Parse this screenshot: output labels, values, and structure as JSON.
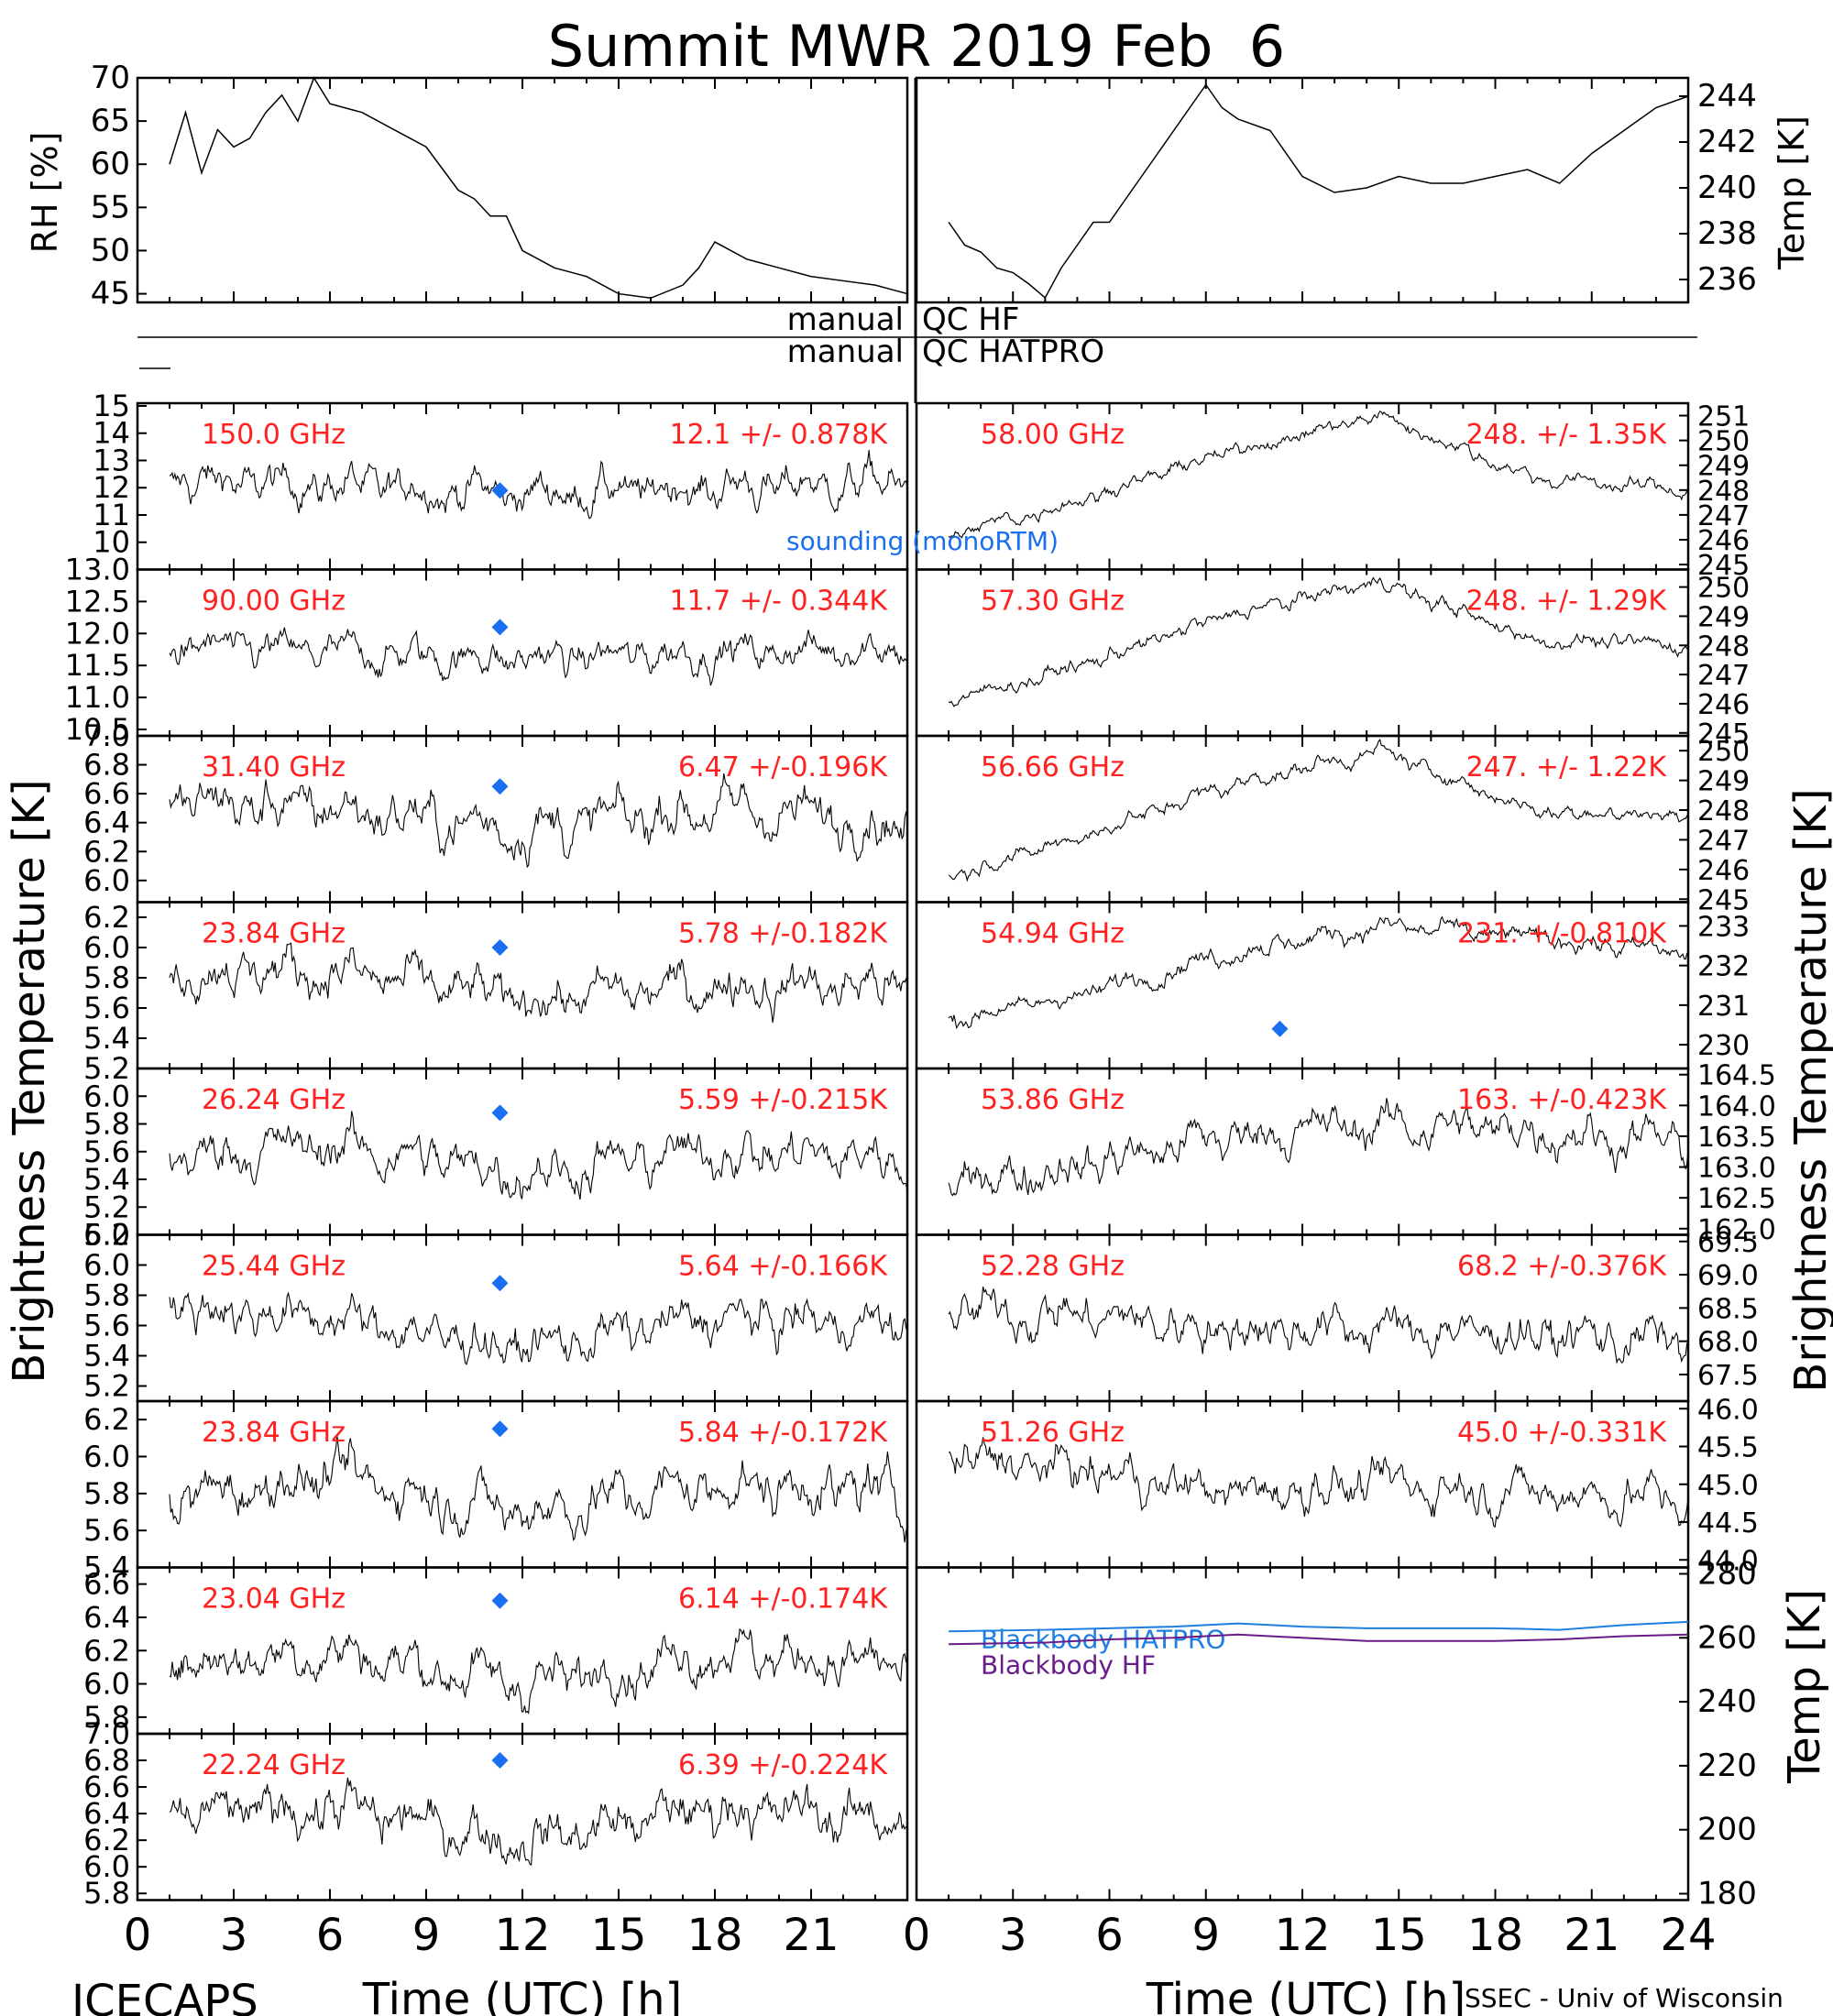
{
  "title": "Summit MWR 2019 Feb  6",
  "footer": {
    "left": "ICECAPS",
    "right": "SSEC - Univ of Wisconsin"
  },
  "colors": {
    "trace": "#000000",
    "annotation": "#ff2020",
    "sounding": "#1a6ef0",
    "blackbody_hatpro": "#1f7fe0",
    "blackbody_hf": "#6a1b8a"
  },
  "qc": {
    "hf_left": "manual",
    "hf_right": "QC HF",
    "hatpro_left": "manual",
    "hatpro_right": "QC HATPRO"
  },
  "labels": {
    "brightness_left": "Brightness Temperature [K]",
    "brightness_right": "Brightness Temperature [K]",
    "sounding": "sounding (monoRTM)"
  },
  "chart_data": {
    "type": "line",
    "x_unit": "Time (UTC) [h]",
    "xlim": [
      0,
      24
    ],
    "x_ticks": [
      0,
      3,
      6,
      9,
      12,
      15,
      18,
      21,
      24
    ],
    "x_tick_labels_left": [
      "0",
      "3",
      "6",
      "9",
      "12",
      "15",
      "18",
      "21"
    ],
    "x_tick_labels_right": [
      "0",
      "3",
      "6",
      "9",
      "12",
      "15",
      "18",
      "21",
      "24"
    ],
    "xlabel_left": "Time (UTC) [h]",
    "xlabel_right": "Time (UTC) [h]",
    "met": {
      "rh": {
        "ylabel": "RH [%]",
        "ylim": [
          44,
          70
        ],
        "ticks": [
          "45",
          "50",
          "55",
          "60",
          "65",
          "70"
        ],
        "t": [
          1,
          1.5,
          2,
          2.5,
          3,
          3.5,
          4,
          4.5,
          5,
          5.5,
          6,
          7,
          8,
          9,
          10,
          10.5,
          11,
          11.5,
          12,
          13,
          14,
          15,
          16,
          17,
          17.5,
          18,
          19,
          20,
          21,
          22,
          23,
          24
        ],
        "v": [
          60,
          66,
          59,
          64,
          62,
          63,
          66,
          68,
          65,
          70,
          67,
          66,
          64,
          62,
          57,
          56,
          54,
          54,
          50,
          48,
          47,
          45,
          44.5,
          46,
          48,
          51,
          49,
          48,
          47,
          46.5,
          46,
          45
        ]
      },
      "temp": {
        "ylabel": "Temp [K]",
        "ylim": [
          235,
          244.8
        ],
        "ticks": [
          "236",
          "238",
          "240",
          "242",
          "244"
        ],
        "t": [
          1,
          1.5,
          2,
          2.5,
          3,
          3.5,
          4,
          4.5,
          5,
          5.5,
          6,
          7,
          8,
          8.5,
          9,
          9.5,
          10,
          11,
          12,
          13,
          14,
          15,
          16,
          17,
          18,
          19,
          20,
          21,
          22,
          23,
          24
        ],
        "v": [
          238.5,
          237.5,
          237.2,
          236.5,
          236.3,
          235.8,
          235.2,
          236.5,
          237.5,
          238.5,
          238.5,
          240.5,
          242.5,
          243.5,
          244.5,
          243.5,
          243,
          242.5,
          240.5,
          239.8,
          240,
          240.5,
          240.2,
          240.2,
          240.5,
          240.8,
          240.2,
          241.5,
          242.5,
          243.5,
          244
        ]
      }
    },
    "left_panels": [
      {
        "label": "150.0 GHz",
        "stat": "12.1 +/- 0.878K",
        "ylim": [
          9,
          15.1
        ],
        "ticks": [
          "10",
          "11",
          "12",
          "13",
          "14",
          "15"
        ],
        "base": [
          12.3,
          12.1,
          11.8,
          12.0,
          12.2
        ],
        "noise": 0.85,
        "sounding": 11.9
      },
      {
        "label": "90.00 GHz",
        "stat": "11.7 +/- 0.344K",
        "ylim": [
          10.4,
          13.0
        ],
        "ticks": [
          "10.5",
          "11.0",
          "11.5",
          "12.0",
          "12.5",
          "13.0"
        ],
        "base": [
          11.8,
          11.7,
          11.6,
          11.7,
          11.8
        ],
        "noise": 0.32,
        "sounding": 12.1
      },
      {
        "label": "31.40 GHz",
        "stat": "6.47 +/-0.196K",
        "ylim": [
          5.85,
          7.0
        ],
        "ticks": [
          "6.0",
          "6.2",
          "6.4",
          "6.6",
          "6.8",
          "7.0"
        ],
        "base": [
          6.55,
          6.5,
          6.35,
          6.5,
          6.4
        ],
        "noise": 0.2,
        "sounding": 6.65
      },
      {
        "label": "23.84 GHz",
        "stat": "5.78 +/-0.182K",
        "ylim": [
          5.2,
          6.3
        ],
        "ticks": [
          "5.2",
          "5.4",
          "5.6",
          "5.8",
          "6.0",
          "6.2"
        ],
        "base": [
          5.85,
          5.85,
          5.65,
          5.75,
          5.75
        ],
        "noise": 0.18,
        "sounding": 6.0
      },
      {
        "label": "26.24 GHz",
        "stat": "5.59 +/-0.215K",
        "ylim": [
          5.0,
          6.2
        ],
        "ticks": [
          "5.0",
          "5.2",
          "5.4",
          "5.6",
          "5.8",
          "6.0"
        ],
        "base": [
          5.55,
          5.65,
          5.45,
          5.6,
          5.55
        ],
        "noise": 0.2,
        "sounding": 5.88
      },
      {
        "label": "25.44 GHz",
        "stat": "5.64 +/-0.166K",
        "ylim": [
          5.1,
          6.2
        ],
        "ticks": [
          "5.2",
          "5.4",
          "5.6",
          "5.8",
          "6.0",
          "6.2"
        ],
        "base": [
          5.75,
          5.65,
          5.45,
          5.65,
          5.6
        ],
        "noise": 0.17,
        "sounding": 5.88
      },
      {
        "label": "23.84 GHz",
        "stat": "5.84 +/-0.172K",
        "ylim": [
          5.4,
          6.3
        ],
        "ticks": [
          "5.4",
          "5.6",
          "5.8",
          "6.0",
          "6.2"
        ],
        "base": [
          5.75,
          5.9,
          5.7,
          5.85,
          5.8
        ],
        "noise": 0.17,
        "sounding": 6.15
      },
      {
        "label": "23.04 GHz",
        "stat": "6.14 +/-0.174K",
        "ylim": [
          5.7,
          6.7
        ],
        "ticks": [
          "5.8",
          "6.0",
          "6.2",
          "6.4",
          "6.6"
        ],
        "base": [
          6.1,
          6.2,
          6.0,
          6.2,
          6.1
        ],
        "noise": 0.17,
        "sounding": 6.5
      },
      {
        "label": "22.24 GHz",
        "stat": "6.39 +/-0.224K",
        "ylim": [
          5.75,
          7.0
        ],
        "ticks": [
          "5.8",
          "6.0",
          "6.2",
          "6.4",
          "6.6",
          "6.8",
          "7.0"
        ],
        "base": [
          6.35,
          6.45,
          6.2,
          6.45,
          6.35
        ],
        "noise": 0.22,
        "sounding": 6.8
      }
    ],
    "right_panels": [
      {
        "label": "58.00 GHz",
        "stat": "248. +/- 1.35K",
        "ylim": [
          244.8,
          251.5
        ],
        "ticks": [
          "245",
          "246",
          "247",
          "248",
          "249",
          "250",
          "251"
        ],
        "base": [
          245.8,
          247.5,
          249.5,
          251.0,
          248.5,
          248.0
        ],
        "noise": 0.35
      },
      {
        "label": "57.30 GHz",
        "stat": "248. +/- 1.29K",
        "ylim": [
          244.9,
          250.6
        ],
        "ticks": [
          "245",
          "246",
          "247",
          "248",
          "249",
          "250"
        ],
        "base": [
          245.8,
          247.2,
          249.0,
          250.2,
          248.2,
          248.0
        ],
        "noise": 0.33
      },
      {
        "label": "56.66 GHz",
        "stat": "247. +/- 1.22K",
        "ylim": [
          244.9,
          250.5
        ],
        "ticks": [
          "245",
          "246",
          "247",
          "248",
          "249",
          "250"
        ],
        "base": [
          245.5,
          247.0,
          248.8,
          250.0,
          248.0,
          247.8
        ],
        "noise": 0.32
      },
      {
        "label": "54.94 GHz",
        "stat": "231. +/-0.810K",
        "ylim": [
          229.4,
          233.6
        ],
        "ticks": [
          "230",
          "231",
          "232",
          "233"
        ],
        "base": [
          230.5,
          231.2,
          232.3,
          233.0,
          232.7,
          232.3
        ],
        "noise": 0.3,
        "sounding": 230.4,
        "sounding_t": 11.3
      },
      {
        "label": "53.86 GHz",
        "stat": "163. +/-0.423K",
        "ylim": [
          161.9,
          164.6
        ],
        "ticks": [
          "162.0",
          "162.5",
          "163.0",
          "163.5",
          "164.0",
          "164.5"
        ],
        "base": [
          162.7,
          163.0,
          163.5,
          163.7,
          163.6,
          163.4
        ],
        "noise": 0.4
      },
      {
        "label": "52.28 GHz",
        "stat": "68.2 +/-0.376K",
        "ylim": [
          67.1,
          69.6
        ],
        "ticks": [
          "67.5",
          "68.0",
          "68.5",
          "69.0",
          "69.5"
        ],
        "base": [
          68.5,
          68.4,
          68.2,
          68.2,
          68.1,
          68.0
        ],
        "noise": 0.38
      },
      {
        "label": "51.26 GHz",
        "stat": "45.0 +/-0.331K",
        "ylim": [
          43.9,
          46.1
        ],
        "ticks": [
          "44.0",
          "44.5",
          "45.0",
          "45.5",
          "46.0"
        ],
        "base": [
          45.4,
          45.2,
          44.9,
          45.0,
          44.9,
          44.8
        ],
        "noise": 0.33
      }
    ],
    "blackbody": {
      "ylabel": "Temp [K]",
      "ylim": [
        178,
        282
      ],
      "ticks": [
        "180",
        "200",
        "220",
        "240",
        "260",
        "280"
      ],
      "series": [
        {
          "name": "Blackbody HATPRO",
          "t": [
            1,
            4,
            6,
            8,
            10,
            12,
            14,
            16,
            18,
            20,
            22,
            24
          ],
          "v": [
            262,
            262.5,
            263,
            263.5,
            264.5,
            263.5,
            263,
            263,
            263,
            262.5,
            264,
            265
          ]
        },
        {
          "name": "Blackbody HF",
          "t": [
            1,
            4,
            6,
            8,
            10,
            12,
            14,
            16,
            18,
            20,
            22,
            24
          ],
          "v": [
            258,
            258.5,
            259.5,
            260,
            261,
            260,
            259,
            259,
            259,
            259.5,
            260.5,
            261
          ]
        }
      ]
    }
  }
}
